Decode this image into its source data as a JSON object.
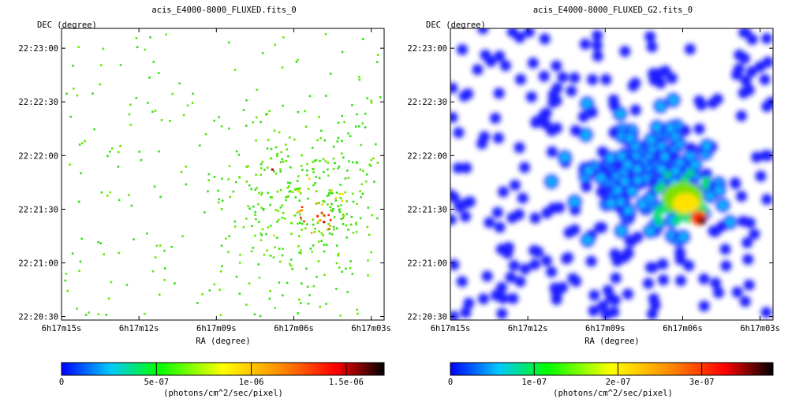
{
  "chart_data": [
    {
      "type": "heatmap",
      "title": "acis_E4000-8000_FLUXED.fits_0",
      "xlabel": "RA (degree)",
      "ylabel": "DEC (degree)",
      "x_ticks": [
        "6h17m15s",
        "6h17m12s",
        "6h17m09s",
        "6h17m06s",
        "6h17m03s"
      ],
      "y_ticks": [
        "22:23:00",
        "22:22:30",
        "22:22:00",
        "22:21:30",
        "22:21:00",
        "22:20:30"
      ],
      "colorbar": {
        "label": "(photons/cm^2/sec/pixel)",
        "ticks": [
          "0",
          "5e-07",
          "1e-06",
          "1.5e-06"
        ],
        "tick_values": [
          0,
          5e-07,
          1e-06,
          1.5e-06
        ],
        "range": [
          0,
          1.7e-06
        ]
      },
      "colormap": [
        "#0000ff",
        "#00c8ff",
        "#00ff00",
        "#ffff00",
        "#ff8c00",
        "#ff0000",
        "#000000"
      ],
      "style": "sparse-pixels"
    },
    {
      "type": "heatmap",
      "title": "acis_E4000-8000_FLUXED_G2.fits_0",
      "xlabel": "RA (degree)",
      "ylabel": "DEC (degree)",
      "x_ticks": [
        "6h17m15s",
        "6h17m12s",
        "6h17m09s",
        "6h17m06s",
        "6h17m03s"
      ],
      "y_ticks": [
        "22:23:00",
        "22:22:30",
        "22:22:00",
        "22:21:30",
        "22:21:00",
        "22:20:30"
      ],
      "colorbar": {
        "label": "(photons/cm^2/sec/pixel)",
        "ticks": [
          "0",
          "1e-07",
          "2e-07",
          "3e-07"
        ],
        "tick_values": [
          0,
          1e-07,
          2e-07,
          3e-07
        ],
        "range": [
          0,
          3.85e-07
        ]
      },
      "colormap": [
        "#0000ff",
        "#00c8ff",
        "#00ff00",
        "#ffff00",
        "#ff8c00",
        "#ff0000",
        "#000000"
      ],
      "style": "smoothed-blobs"
    }
  ]
}
